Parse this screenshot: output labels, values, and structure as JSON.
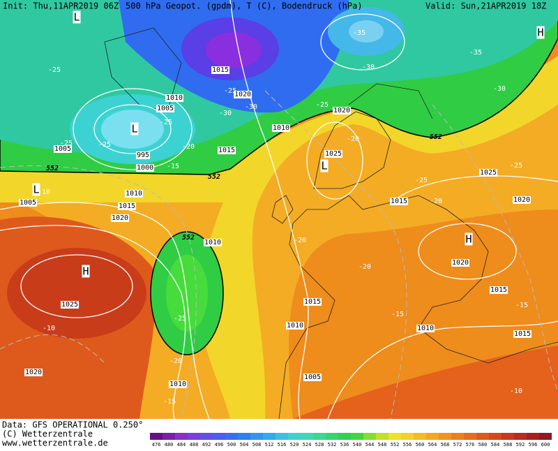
{
  "header": {
    "init": "Init: Thu,11APR2019 06Z",
    "title": "500 hPa Geopot. (gpdm), T (C), Bodendruck (hPa)",
    "valid": "Valid: Sun,21APR2019 18Z"
  },
  "footer": {
    "data": "Data: GFS OPERATIONAL 0.250°",
    "copyright": "(C) Wetterzentrale",
    "url": "www.wetterzentrale.de"
  },
  "colorbar": {
    "labels": [
      476,
      480,
      484,
      488,
      492,
      496,
      500,
      504,
      508,
      512,
      516,
      520,
      524,
      528,
      532,
      536,
      540,
      544,
      548,
      552,
      556,
      560,
      564,
      568,
      572,
      576,
      580,
      584,
      588,
      592,
      596,
      600
    ]
  },
  "map": {
    "pressure_labels": [
      "1015",
      "1020",
      "1010",
      "1005",
      "995",
      "1000",
      "1010",
      "1015",
      "1005",
      "1005",
      "1010",
      "1015",
      "1020",
      "1025",
      "1020",
      "1010",
      "1015",
      "1010",
      "1005",
      "1010",
      "1010",
      "1015",
      "1015",
      "1020",
      "1020",
      "1025",
      "1015",
      "1020",
      "1025"
    ],
    "temperature_labels": [
      "-35",
      "-35",
      "-30",
      "-30",
      "-25",
      "-25",
      "-30",
      "-25",
      "-30",
      "-25",
      "-25",
      "-25",
      "-20",
      "-15",
      "-20",
      "-25",
      "-20",
      "-25",
      "-20",
      "-20",
      "-25",
      "-20",
      "-15",
      "-10",
      "-15",
      "-15",
      "-10",
      "-10"
    ],
    "geopotential_labels": [
      "552",
      "552",
      "552",
      "552"
    ],
    "centers": [
      "L",
      "H",
      "L",
      "L",
      "L",
      "H",
      "H"
    ]
  }
}
